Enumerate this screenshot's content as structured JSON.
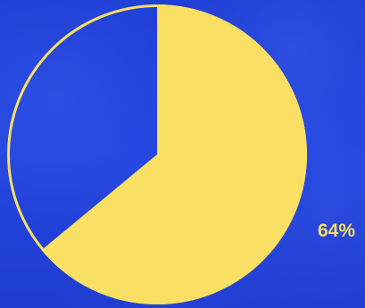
{
  "chart_data": {
    "type": "pie",
    "values": [
      64,
      36
    ],
    "labels": [
      "64%",
      ""
    ],
    "colors": {
      "slice_main": "#f9df63",
      "slice_rest": "#2446df",
      "outline": "#f9df63",
      "label": "#f9df63",
      "background": "#2244dd"
    }
  }
}
